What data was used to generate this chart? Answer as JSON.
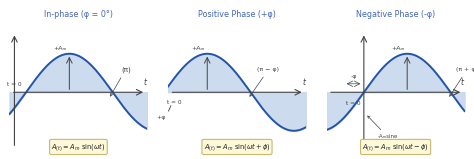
{
  "title1": "In-phase (φ = 0°)",
  "title2": "Positive Phase (+φ)",
  "title3": "Negative Phase (-φ)",
  "wave_color": "#2255aa",
  "fill_color": "#c8d8ee",
  "bg_color": "#ffffff",
  "formula_bg": "#fdf8d8",
  "formula_border": "#c8b870",
  "title_color": "#4466bb",
  "ann_color": "#444444",
  "axis_color": "#444444",
  "phase_shift1": 0.0,
  "phase_shift2": 0.75,
  "phase_shift3": -0.75,
  "xlim": [
    -0.6,
    4.4
  ],
  "ylim": [
    -1.65,
    1.9
  ],
  "Am": 1.0
}
